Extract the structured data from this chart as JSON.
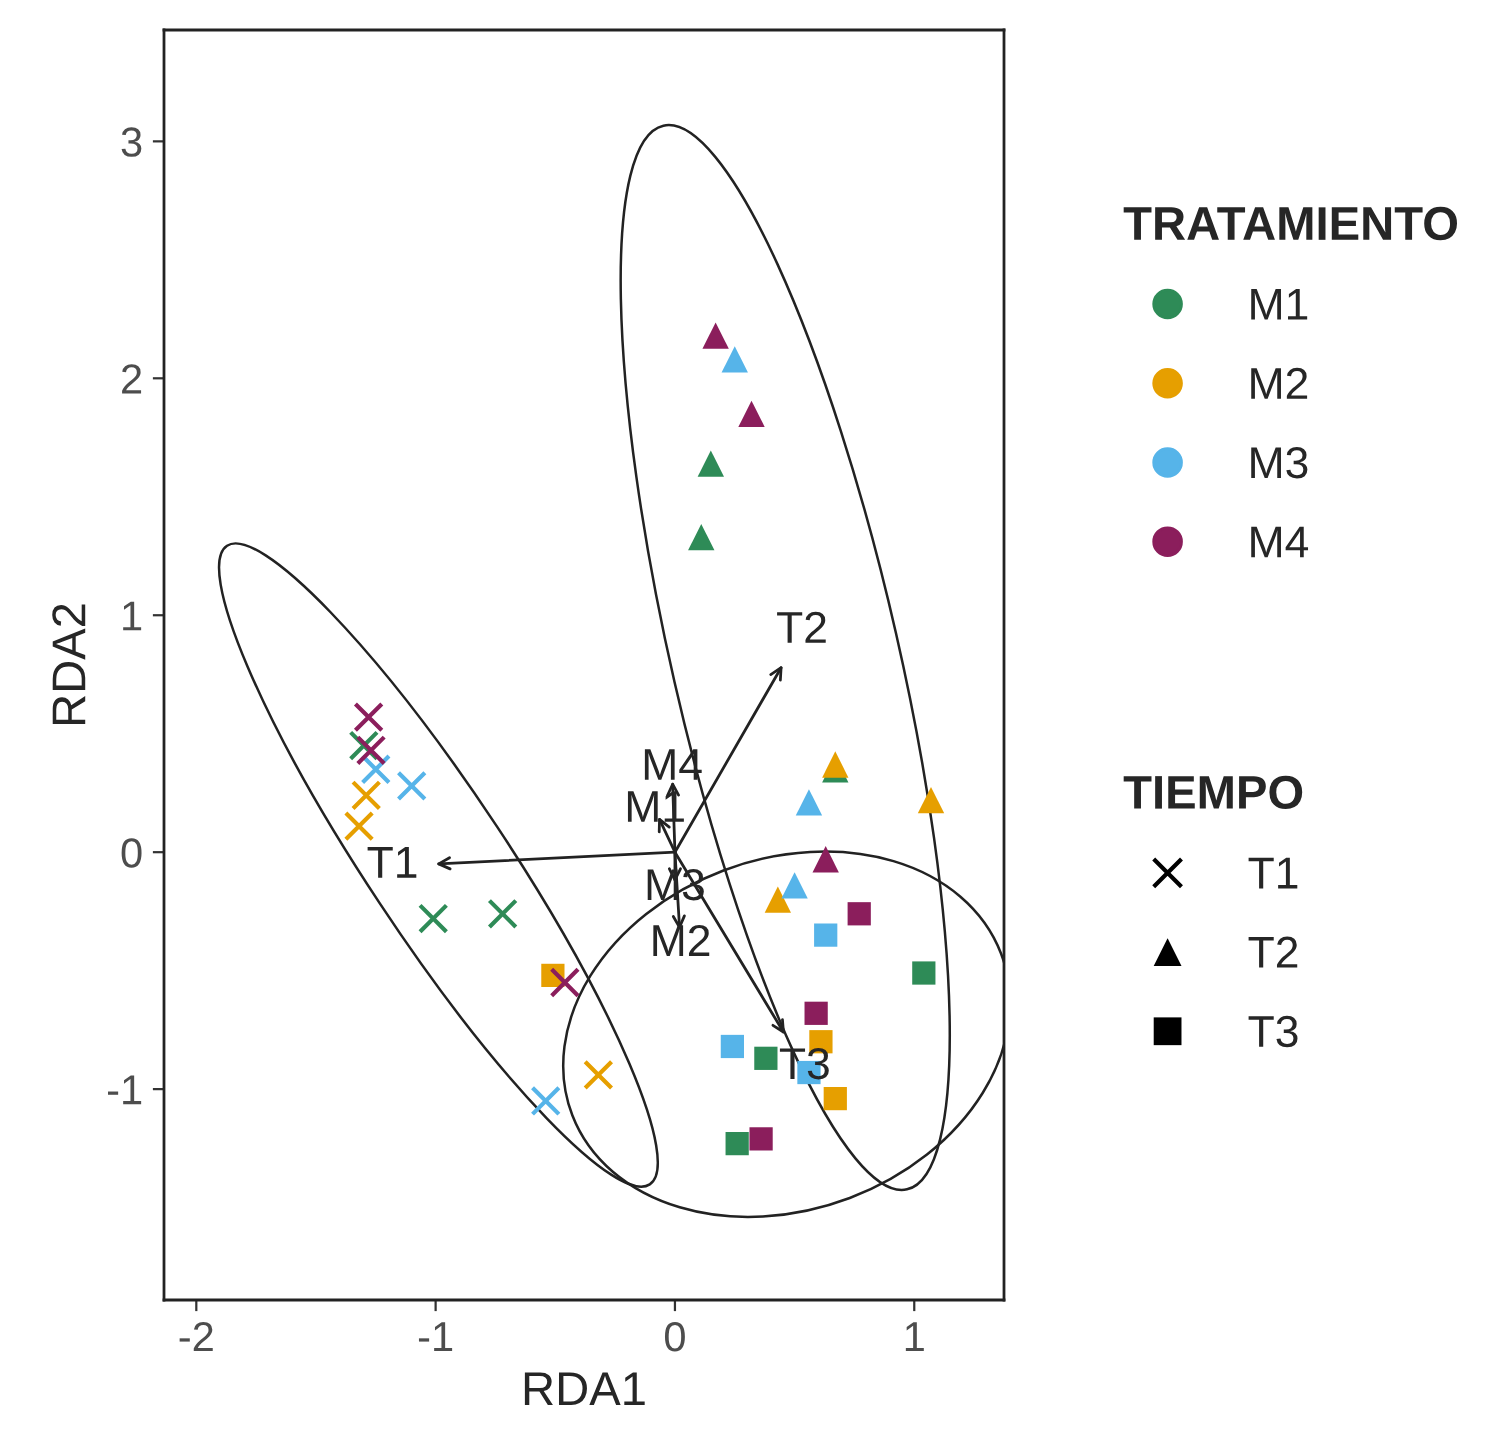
{
  "chart_data": {
    "type": "scatter",
    "xlabel": "RDA1",
    "ylabel": "RDA2",
    "xlim": [
      -2.135,
      1.375
    ],
    "ylim": [
      -1.89,
      3.47
    ],
    "xticks": [
      {
        "value": -2,
        "label": "-2"
      },
      {
        "value": -1,
        "label": "-1"
      },
      0,
      1
    ],
    "yticks": [
      {
        "value": -1,
        "label": "-1"
      },
      0,
      1,
      2,
      3
    ],
    "grid": false,
    "legend": "right",
    "legend_title": [
      "TRATAMIENTO",
      "TIEMPO"
    ],
    "annotations": [
      "T1",
      "T2",
      "T3"
    ],
    "series": [
      {
        "name": "M1",
        "color": "#2e8b57",
        "marker": "cross",
        "x": [
          -1.3,
          -1.01,
          -0.72
        ],
        "values": [
          0.45,
          -0.28,
          -0.26
        ]
      },
      {
        "color": "#2e8b57",
        "marker": "triangle",
        "x": [
          0.15,
          0.11,
          0.67
        ],
        "values": [
          1.64,
          1.33,
          0.35
        ]
      },
      {
        "color": "#2e8b57",
        "marker": "square",
        "x": [
          1.04,
          0.38,
          0.26
        ],
        "values": [
          -0.51,
          -0.87,
          -1.23
        ]
      },
      {
        "name": "M2",
        "color": "#e69f00",
        "marker": "cross",
        "x": [
          -1.29,
          -1.32,
          -0.32
        ],
        "values": [
          0.24,
          0.11,
          -0.94
        ]
      },
      {
        "color": "#e69f00",
        "marker": "triangle",
        "x": [
          0.67,
          1.07,
          0.43
        ],
        "values": [
          0.37,
          0.22,
          -0.2
        ]
      },
      {
        "color": "#e69f00",
        "marker": "square",
        "x": [
          -0.51,
          0.61,
          0.67
        ],
        "values": [
          -0.52,
          -0.8,
          -1.04
        ]
      },
      {
        "name": "M3",
        "color": "#56b4e9",
        "marker": "cross",
        "x": [
          -1.25,
          -1.1,
          -0.54
        ],
        "values": [
          0.35,
          0.28,
          -1.05
        ]
      },
      {
        "color": "#56b4e9",
        "marker": "triangle",
        "x": [
          0.25,
          0.56,
          0.5
        ],
        "values": [
          2.08,
          0.21,
          -0.14
        ]
      },
      {
        "color": "#56b4e9",
        "marker": "square",
        "x": [
          0.63,
          0.24,
          0.56
        ],
        "values": [
          -0.35,
          -0.82,
          -0.93
        ]
      },
      {
        "name": "M4",
        "color": "#8b1e5c",
        "marker": "cross",
        "x": [
          -1.28,
          -1.27,
          -0.46
        ],
        "values": [
          0.57,
          0.43,
          -0.55
        ]
      },
      {
        "color": "#8b1e5c",
        "marker": "triangle",
        "x": [
          0.17,
          0.32,
          0.63
        ],
        "values": [
          2.18,
          1.85,
          -0.03
        ]
      },
      {
        "color": "#8b1e5c",
        "marker": "square",
        "x": [
          0.77,
          0.59,
          0.36
        ],
        "values": [
          -0.26,
          -0.68,
          -1.21
        ]
      },
      {
        "type": "line",
        "name": "T1",
        "color": "#222222",
        "x": [
          0,
          -1.0
        ],
        "values": [
          0,
          -0.05
        ]
      },
      {
        "type": "line",
        "name": "T2",
        "color": "#222222",
        "x": [
          0,
          0.45
        ],
        "values": [
          0,
          0.79
        ]
      },
      {
        "type": "line",
        "name": "T3",
        "color": "#222222",
        "x": [
          0,
          0.46
        ],
        "values": [
          0,
          -0.77
        ]
      },
      {
        "type": "line",
        "name": "M4",
        "color": "#222222",
        "x": [
          0,
          -0.01
        ],
        "values": [
          0,
          0.3
        ]
      },
      {
        "type": "line",
        "name": "M1",
        "color": "#222222",
        "x": [
          0,
          -0.07
        ],
        "values": [
          0,
          0.15
        ]
      },
      {
        "type": "line",
        "name": "M3",
        "color": "#222222",
        "x": [
          0,
          0.0
        ],
        "values": [
          0,
          -0.13
        ]
      },
      {
        "type": "line",
        "name": "M2",
        "color": "#222222",
        "x": [
          0,
          0.02
        ],
        "values": [
          0,
          -0.33
        ]
      }
    ]
  }
}
